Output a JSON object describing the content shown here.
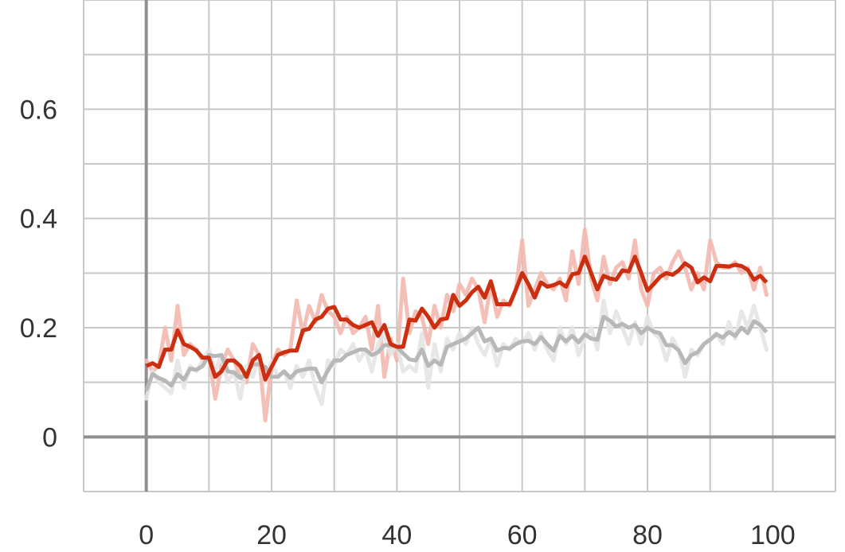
{
  "chart_data": {
    "type": "line",
    "xlim": [
      -10,
      110
    ],
    "ylim": [
      -0.1,
      0.8
    ],
    "x_ticks": [
      0,
      20,
      40,
      60,
      80,
      100
    ],
    "x_tick_labels": [
      "0",
      "20",
      "40",
      "60",
      "80",
      "100"
    ],
    "y_ticks": [
      0,
      0.2,
      0.4,
      0.6
    ],
    "y_tick_labels": [
      "0",
      "0.2",
      "0.4",
      "0.6"
    ],
    "x_minor_step": 10,
    "y_minor_step": 0.1,
    "grid": true,
    "series": [
      {
        "color": "#cc2e10",
        "raw_color": "#f2b8ae",
        "x": [
          0,
          1,
          2,
          3,
          4,
          5,
          6,
          7,
          8,
          9,
          10,
          11,
          12,
          13,
          14,
          15,
          16,
          17,
          18,
          19,
          20,
          21,
          22,
          23,
          24,
          25,
          26,
          27,
          28,
          29,
          30,
          31,
          32,
          33,
          34,
          35,
          36,
          37,
          38,
          39,
          40,
          41,
          42,
          43,
          44,
          45,
          46,
          47,
          48,
          49,
          50,
          51,
          52,
          53,
          54,
          55,
          56,
          57,
          58,
          59,
          60,
          61,
          62,
          63,
          64,
          65,
          66,
          67,
          68,
          69,
          70,
          71,
          72,
          73,
          74,
          75,
          76,
          77,
          78,
          79,
          80,
          81,
          82,
          83,
          84,
          85,
          86,
          87,
          88,
          89,
          90,
          91,
          92,
          93,
          94,
          95,
          96,
          97,
          98,
          99
        ],
        "raw": [
          0.14,
          0.12,
          0.13,
          0.2,
          0.14,
          0.24,
          0.15,
          0.17,
          0.16,
          0.14,
          0.15,
          0.07,
          0.13,
          0.16,
          0.14,
          0.11,
          0.1,
          0.17,
          0.15,
          0.03,
          0.13,
          0.16,
          0.15,
          0.16,
          0.25,
          0.19,
          0.24,
          0.21,
          0.26,
          0.23,
          0.22,
          0.19,
          0.22,
          0.19,
          0.2,
          0.22,
          0.16,
          0.24,
          0.11,
          0.18,
          0.14,
          0.29,
          0.19,
          0.23,
          0.22,
          0.17,
          0.24,
          0.2,
          0.26,
          0.23,
          0.28,
          0.26,
          0.29,
          0.27,
          0.21,
          0.28,
          0.22,
          0.25,
          0.24,
          0.27,
          0.36,
          0.24,
          0.27,
          0.3,
          0.28,
          0.27,
          0.29,
          0.25,
          0.34,
          0.28,
          0.38,
          0.29,
          0.25,
          0.33,
          0.28,
          0.31,
          0.32,
          0.29,
          0.36,
          0.27,
          0.24,
          0.3,
          0.31,
          0.29,
          0.32,
          0.34,
          0.31,
          0.27,
          0.3,
          0.27,
          0.36,
          0.32,
          0.31,
          0.31,
          0.32,
          0.3,
          0.31,
          0.27,
          0.31,
          0.26
        ],
        "smoothed": [
          0.13,
          0.135,
          0.128,
          0.16,
          0.16,
          0.195,
          0.17,
          0.165,
          0.158,
          0.145,
          0.145,
          0.11,
          0.12,
          0.14,
          0.14,
          0.13,
          0.11,
          0.14,
          0.15,
          0.105,
          0.128,
          0.15,
          0.155,
          0.158,
          0.158,
          0.195,
          0.198,
          0.215,
          0.22,
          0.235,
          0.238,
          0.215,
          0.215,
          0.205,
          0.2,
          0.205,
          0.21,
          0.185,
          0.205,
          0.17,
          0.165,
          0.165,
          0.215,
          0.213,
          0.235,
          0.22,
          0.2,
          0.215,
          0.217,
          0.26,
          0.24,
          0.25,
          0.265,
          0.275,
          0.255,
          0.285,
          0.243,
          0.243,
          0.243,
          0.27,
          0.3,
          0.28,
          0.255,
          0.283,
          0.275,
          0.278,
          0.283,
          0.275,
          0.298,
          0.3,
          0.33,
          0.3,
          0.27,
          0.295,
          0.29,
          0.288,
          0.305,
          0.303,
          0.33,
          0.3,
          0.268,
          0.28,
          0.293,
          0.3,
          0.297,
          0.305,
          0.318,
          0.31,
          0.283,
          0.292,
          0.285,
          0.313,
          0.313,
          0.312,
          0.315,
          0.313,
          0.306,
          0.288,
          0.295,
          0.283
        ]
      },
      {
        "color": "#b8b8b8",
        "raw_color": "#e4e4e4",
        "x": [
          0,
          1,
          2,
          3,
          4,
          5,
          6,
          7,
          8,
          9,
          10,
          11,
          12,
          13,
          14,
          15,
          16,
          17,
          18,
          19,
          20,
          21,
          22,
          23,
          24,
          25,
          26,
          27,
          28,
          29,
          30,
          31,
          32,
          33,
          34,
          35,
          36,
          37,
          38,
          39,
          40,
          41,
          42,
          43,
          44,
          45,
          46,
          47,
          48,
          49,
          50,
          51,
          52,
          53,
          54,
          55,
          56,
          57,
          58,
          59,
          60,
          61,
          62,
          63,
          64,
          65,
          66,
          67,
          68,
          69,
          70,
          71,
          72,
          73,
          74,
          75,
          76,
          77,
          78,
          79,
          80,
          81,
          82,
          83,
          84,
          85,
          86,
          87,
          88,
          89,
          90,
          91,
          92,
          93,
          94,
          95,
          96,
          97,
          98,
          99
        ],
        "raw": [
          0.07,
          0.12,
          0.1,
          0.09,
          0.08,
          0.14,
          0.09,
          0.13,
          0.12,
          0.14,
          0.16,
          0.12,
          0.15,
          0.1,
          0.12,
          0.07,
          0.13,
          0.11,
          0.15,
          0.1,
          0.14,
          0.11,
          0.12,
          0.09,
          0.13,
          0.11,
          0.14,
          0.09,
          0.06,
          0.14,
          0.13,
          0.16,
          0.15,
          0.17,
          0.14,
          0.16,
          0.12,
          0.17,
          0.19,
          0.15,
          0.17,
          0.12,
          0.13,
          0.12,
          0.19,
          0.09,
          0.17,
          0.12,
          0.18,
          0.16,
          0.19,
          0.17,
          0.2,
          0.17,
          0.15,
          0.18,
          0.13,
          0.17,
          0.16,
          0.18,
          0.17,
          0.19,
          0.16,
          0.19,
          0.16,
          0.14,
          0.2,
          0.17,
          0.2,
          0.15,
          0.18,
          0.2,
          0.16,
          0.25,
          0.19,
          0.23,
          0.2,
          0.17,
          0.21,
          0.17,
          0.22,
          0.19,
          0.18,
          0.14,
          0.18,
          0.16,
          0.11,
          0.16,
          0.15,
          0.17,
          0.18,
          0.19,
          0.17,
          0.21,
          0.18,
          0.23,
          0.2,
          0.24,
          0.2,
          0.16
        ],
        "smoothed": [
          0.085,
          0.115,
          0.108,
          0.103,
          0.094,
          0.115,
          0.105,
          0.125,
          0.123,
          0.13,
          0.15,
          0.148,
          0.15,
          0.12,
          0.118,
          0.108,
          0.115,
          0.133,
          0.133,
          0.128,
          0.11,
          0.11,
          0.12,
          0.108,
          0.12,
          0.123,
          0.125,
          0.125,
          0.1,
          0.122,
          0.14,
          0.14,
          0.15,
          0.155,
          0.16,
          0.16,
          0.15,
          0.155,
          0.168,
          0.168,
          0.165,
          0.153,
          0.142,
          0.14,
          0.16,
          0.13,
          0.14,
          0.132,
          0.165,
          0.17,
          0.175,
          0.18,
          0.19,
          0.2,
          0.175,
          0.18,
          0.158,
          0.163,
          0.162,
          0.17,
          0.175,
          0.176,
          0.17,
          0.183,
          0.17,
          0.158,
          0.185,
          0.175,
          0.185,
          0.173,
          0.188,
          0.18,
          0.178,
          0.22,
          0.213,
          0.202,
          0.207,
          0.2,
          0.205,
          0.19,
          0.2,
          0.193,
          0.19,
          0.168,
          0.168,
          0.158,
          0.135,
          0.15,
          0.155,
          0.17,
          0.178,
          0.188,
          0.182,
          0.192,
          0.185,
          0.2,
          0.19,
          0.212,
          0.205,
          0.192
        ]
      }
    ]
  }
}
